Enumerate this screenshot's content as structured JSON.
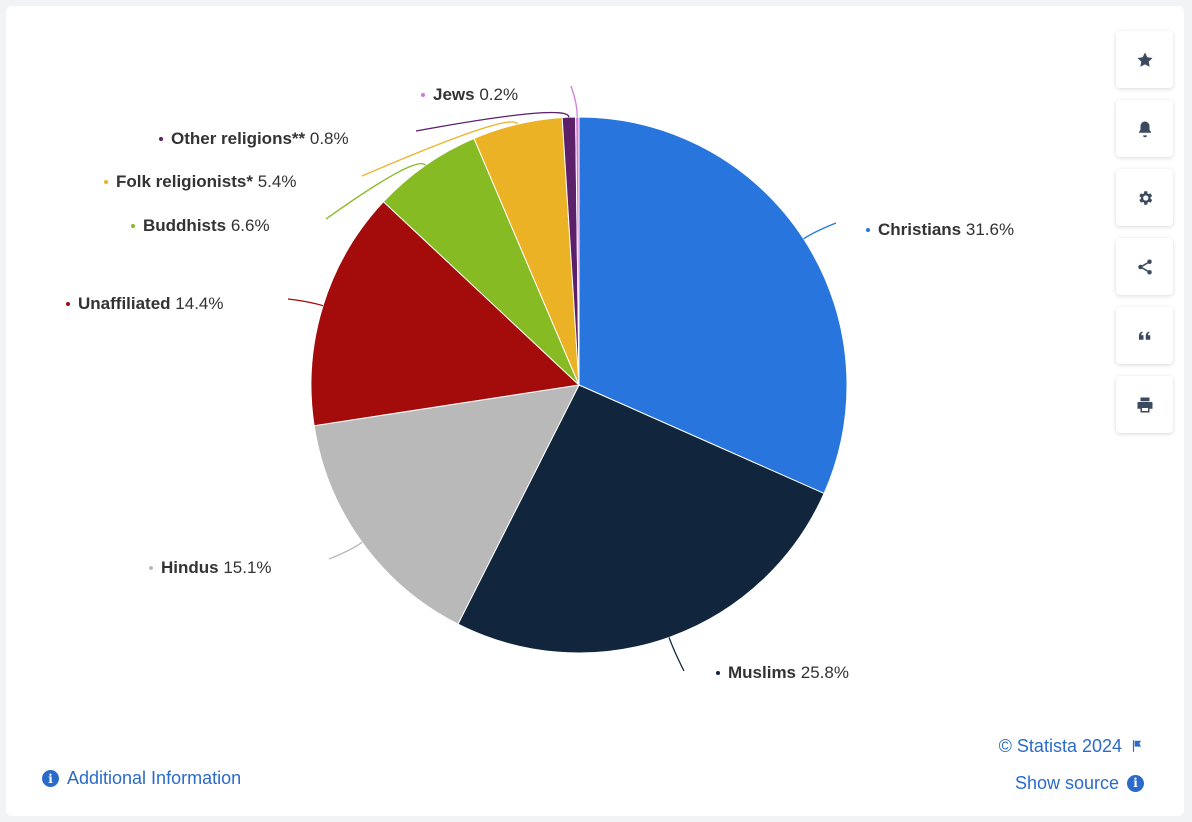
{
  "chart_data": {
    "type": "pie",
    "slices": [
      {
        "name": "Christians",
        "value": 31.6,
        "label": "31.6%",
        "color": "#2876dd"
      },
      {
        "name": "Muslims",
        "value": 25.8,
        "label": "25.8%",
        "color": "#11263d"
      },
      {
        "name": "Hindus",
        "value": 15.1,
        "label": "15.1%",
        "color": "#b9b9b9"
      },
      {
        "name": "Unaffiliated",
        "value": 14.4,
        "label": "14.4%",
        "color": "#a40b0b"
      },
      {
        "name": "Buddhists",
        "value": 6.6,
        "label": "6.6%",
        "color": "#86bb24"
      },
      {
        "name": "Folk religionists*",
        "value": 5.4,
        "label": "5.4%",
        "color": "#ecb226"
      },
      {
        "name": "Other religions**",
        "value": 0.8,
        "label": "0.8%",
        "color": "#5c1f69"
      },
      {
        "name": "Jews",
        "value": 0.2,
        "label": "0.2%",
        "color": "#d07bd9"
      }
    ],
    "legend": "none"
  },
  "toolbar": {
    "buttons": [
      {
        "name": "favorite",
        "icon": "star-icon"
      },
      {
        "name": "notification",
        "icon": "bell-icon"
      },
      {
        "name": "settings",
        "icon": "gear-icon"
      },
      {
        "name": "share",
        "icon": "share-icon"
      },
      {
        "name": "cite",
        "icon": "quote-icon"
      },
      {
        "name": "print",
        "icon": "printer-icon"
      }
    ]
  },
  "footer": {
    "additional_info": "Additional Information",
    "copyright": "© Statista 2024",
    "show_source": "Show source",
    "link_color": "#2a6bc9"
  }
}
